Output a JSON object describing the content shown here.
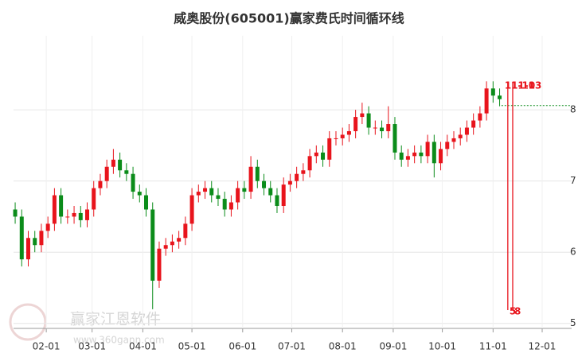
{
  "chart_data": {
    "type": "candlestick",
    "title": "威奥股份(605001)赢家费氏时间循环线",
    "x": [
      "01-13",
      "01-17",
      "01-21",
      "01-25",
      "01-29",
      "02-02",
      "02-06",
      "02-10",
      "02-14",
      "02-18",
      "02-22",
      "02-26",
      "03-02",
      "03-06",
      "03-10",
      "03-14",
      "03-18",
      "03-22",
      "03-26",
      "03-30",
      "04-03",
      "04-07",
      "04-11",
      "04-15",
      "04-19",
      "04-23",
      "04-27",
      "05-01",
      "05-05",
      "05-09",
      "05-13",
      "05-17",
      "05-21",
      "05-25",
      "05-29",
      "06-02",
      "06-06",
      "06-10",
      "06-14",
      "06-18",
      "06-22",
      "06-26",
      "06-30",
      "07-04",
      "07-08",
      "07-12",
      "07-16",
      "07-20",
      "07-24",
      "07-28",
      "08-01",
      "08-05",
      "08-09",
      "08-13",
      "08-17",
      "08-21",
      "08-25",
      "08-29",
      "09-02",
      "09-06",
      "09-10",
      "09-14",
      "09-18",
      "09-22",
      "09-26",
      "09-30",
      "10-04",
      "10-08",
      "10-12",
      "10-16",
      "10-20",
      "10-24",
      "10-28",
      "11-01",
      "11-05"
    ],
    "open": [
      6.6,
      6.5,
      5.9,
      6.2,
      6.1,
      6.3,
      6.4,
      6.8,
      6.5,
      6.5,
      6.55,
      6.45,
      6.6,
      6.9,
      7.0,
      7.2,
      7.3,
      7.15,
      7.1,
      6.85,
      6.8,
      6.6,
      5.6,
      6.05,
      6.1,
      6.15,
      6.2,
      6.4,
      6.8,
      6.85,
      6.9,
      6.8,
      6.75,
      6.6,
      6.7,
      6.9,
      6.85,
      7.2,
      7.0,
      6.9,
      6.8,
      6.65,
      6.95,
      7.0,
      7.1,
      7.15,
      7.35,
      7.4,
      7.3,
      7.6,
      7.6,
      7.65,
      7.7,
      7.9,
      7.95,
      7.75,
      7.75,
      7.7,
      7.8,
      7.4,
      7.3,
      7.35,
      7.4,
      7.35,
      7.55,
      7.25,
      7.45,
      7.55,
      7.6,
      7.65,
      7.75,
      7.85,
      7.95,
      8.3,
      8.2
    ],
    "high": [
      6.7,
      6.6,
      6.3,
      6.3,
      6.4,
      6.5,
      6.9,
      6.9,
      6.6,
      6.65,
      6.65,
      6.7,
      7.0,
      7.1,
      7.3,
      7.45,
      7.4,
      7.25,
      7.2,
      6.95,
      6.9,
      6.7,
      6.15,
      6.2,
      6.25,
      6.3,
      6.5,
      6.9,
      6.95,
      7.0,
      7.0,
      6.9,
      6.85,
      6.8,
      7.0,
      7.0,
      7.35,
      7.3,
      7.1,
      7.0,
      6.9,
      7.05,
      7.1,
      7.2,
      7.25,
      7.45,
      7.5,
      7.5,
      7.7,
      7.7,
      7.75,
      7.8,
      8.0,
      8.1,
      8.05,
      7.85,
      7.85,
      8.05,
      7.9,
      7.5,
      7.45,
      7.5,
      7.5,
      7.65,
      7.65,
      7.55,
      7.65,
      7.7,
      7.75,
      7.85,
      7.95,
      8.05,
      8.4,
      8.4,
      8.3
    ],
    "low": [
      6.4,
      5.8,
      5.8,
      6.0,
      6.0,
      6.2,
      6.3,
      6.4,
      6.4,
      6.4,
      6.35,
      6.35,
      6.5,
      6.8,
      6.9,
      7.1,
      7.05,
      7.0,
      6.75,
      6.7,
      6.5,
      5.2,
      5.5,
      5.95,
      6.0,
      6.05,
      6.1,
      6.3,
      6.7,
      6.75,
      6.7,
      6.65,
      6.5,
      6.5,
      6.6,
      6.75,
      6.75,
      6.9,
      6.8,
      6.7,
      6.55,
      6.55,
      6.85,
      6.9,
      7.0,
      7.05,
      7.25,
      7.2,
      7.2,
      7.5,
      7.5,
      7.55,
      7.6,
      7.8,
      7.65,
      7.65,
      7.6,
      7.6,
      7.3,
      7.2,
      7.2,
      7.25,
      7.25,
      7.25,
      7.05,
      7.15,
      7.35,
      7.45,
      7.5,
      7.55,
      7.65,
      7.75,
      7.85,
      8.1,
      8.05
    ],
    "close": [
      6.5,
      5.9,
      6.2,
      6.1,
      6.3,
      6.4,
      6.8,
      6.5,
      6.5,
      6.55,
      6.45,
      6.6,
      6.9,
      7.0,
      7.2,
      7.3,
      7.15,
      7.1,
      6.85,
      6.8,
      6.6,
      5.6,
      6.05,
      6.1,
      6.15,
      6.2,
      6.4,
      6.8,
      6.85,
      6.9,
      6.8,
      6.75,
      6.6,
      6.7,
      6.9,
      6.85,
      7.2,
      7.0,
      6.9,
      6.8,
      6.65,
      6.95,
      7.0,
      7.1,
      7.15,
      7.35,
      7.4,
      7.3,
      7.6,
      7.6,
      7.65,
      7.7,
      7.9,
      7.95,
      7.75,
      7.75,
      7.7,
      7.8,
      7.4,
      7.3,
      7.35,
      7.4,
      7.35,
      7.55,
      7.25,
      7.45,
      7.55,
      7.6,
      7.65,
      7.75,
      7.85,
      7.95,
      8.3,
      8.2,
      8.15
    ],
    "up_color": "#e8141c",
    "down_color": "#0b8c1a",
    "xlim": [
      "01-12",
      "12-19"
    ],
    "xticks": [
      "02-01",
      "03-01",
      "04-01",
      "05-01",
      "06-01",
      "07-01",
      "08-01",
      "09-01",
      "10-01",
      "11-01",
      "12-01"
    ],
    "ylim": [
      4.93,
      9.04
    ],
    "yticks": [
      5,
      6,
      7,
      8
    ],
    "grid": true,
    "cycle_lines": [
      {
        "x": "11-10",
        "label": "11-10",
        "count": 5
      },
      {
        "x": "11-13",
        "label": "11-13",
        "count": 8
      }
    ],
    "cycle_color": "#e8141c",
    "reference_line": {
      "x": "11-10",
      "value": 8.06,
      "color": "#0b8c1a"
    },
    "watermark": [
      "赢家江恩软件",
      "www.360gann.com"
    ]
  }
}
